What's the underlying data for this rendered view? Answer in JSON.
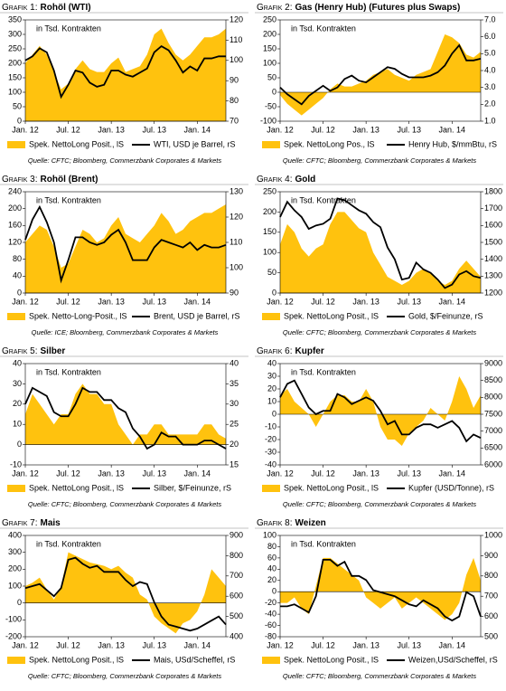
{
  "chart_data": [
    {
      "type": "area-line",
      "label": "Grafik 1:",
      "title": "Rohöl (WTI)",
      "annotation": "in Tsd. Kontrakten",
      "source": "Quelle: CFTC; Bloomberg, Commerzbank Corporates & Markets",
      "categories": [
        "Jan. 12",
        null,
        null,
        null,
        null,
        null,
        "Jul. 12",
        null,
        null,
        null,
        null,
        null,
        "Jan. 13",
        null,
        null,
        null,
        null,
        null,
        "Jul. 13",
        null,
        null,
        null,
        null,
        null,
        "Jan. 14",
        null,
        null,
        null,
        null
      ],
      "ylim": [
        0,
        350
      ],
      "yticks": [
        0,
        50,
        100,
        150,
        200,
        250,
        300,
        350
      ],
      "y2lim": [
        70,
        120
      ],
      "y2ticks": [
        70,
        80,
        90,
        100,
        110,
        120
      ],
      "series": [
        {
          "name": "Spek. NettoLong Posit., lS",
          "color": "#ffc20e",
          "values": [
            200,
            230,
            260,
            230,
            170,
            110,
            130,
            180,
            210,
            180,
            170,
            170,
            200,
            220,
            170,
            180,
            190,
            230,
            300,
            320,
            270,
            230,
            210,
            230,
            260,
            290,
            290,
            300,
            320
          ]
        },
        {
          "name": "WTI, USD je Barrel, rS",
          "color": "#000000",
          "axis": "y2",
          "values": [
            100,
            102,
            106,
            104,
            95,
            82,
            88,
            95,
            94,
            89,
            87,
            88,
            95,
            95,
            93,
            92,
            94,
            96,
            104,
            107,
            105,
            100,
            94,
            97,
            95,
            101,
            101,
            102,
            102
          ]
        }
      ]
    },
    {
      "type": "area-line",
      "label": "Grafik 2:",
      "title": "Gas (Henry Hub) (Futures plus Swaps)",
      "annotation": "in Tsd. Kontrakten",
      "source": "Quelle: CFTC; Bloomberg, Commerzbank Corporates & Markets",
      "categories": [
        "Jan. 12",
        null,
        null,
        null,
        null,
        null,
        "Jul. 12",
        null,
        null,
        null,
        null,
        null,
        "Jan. 13",
        null,
        null,
        null,
        null,
        null,
        "Jul. 13",
        null,
        null,
        null,
        null,
        null,
        "Jan. 14",
        null,
        null,
        null,
        null
      ],
      "ylim": [
        -100,
        250
      ],
      "yticks": [
        -100,
        -50,
        0,
        50,
        100,
        150,
        200,
        250
      ],
      "y2lim": [
        1,
        7
      ],
      "y2ticks": [
        {
          "value": 1,
          "label": "1.0"
        },
        {
          "value": 2,
          "label": "2.0"
        },
        {
          "value": 3,
          "label": "3.0"
        },
        {
          "value": 4,
          "label": "4.0"
        },
        {
          "value": 5,
          "label": "5.0"
        },
        {
          "value": 6,
          "label": "6.0"
        },
        {
          "value": 7,
          "label": "7.0"
        }
      ],
      "series": [
        {
          "name": "Spek. NettoLong Pos., lS",
          "color": "#ffc20e",
          "values": [
            -10,
            -40,
            -60,
            -80,
            -60,
            -40,
            -20,
            10,
            30,
            20,
            20,
            30,
            40,
            60,
            70,
            80,
            60,
            50,
            40,
            60,
            70,
            80,
            140,
            200,
            190,
            170,
            130,
            120,
            140
          ]
        },
        {
          "name": "Henry Hub, $/mmBtu, rS",
          "color": "#000000",
          "axis": "y2",
          "values": [
            3.0,
            2.6,
            2.3,
            2.0,
            2.5,
            2.8,
            3.1,
            2.8,
            3.0,
            3.5,
            3.7,
            3.4,
            3.3,
            3.6,
            3.9,
            4.2,
            4.1,
            3.8,
            3.6,
            3.6,
            3.6,
            3.7,
            3.9,
            4.3,
            5.0,
            5.5,
            4.6,
            4.6,
            4.7
          ]
        }
      ]
    },
    {
      "type": "area-line",
      "label": "Grafik 3:",
      "title": "Rohöl (Brent)",
      "annotation": "in Tsd. Kontrakten",
      "source": "Quelle: ICE; Bloomberg, Commerzbank Corporates & Markets",
      "categories": [
        "Jan. 12",
        null,
        null,
        null,
        null,
        null,
        "Jul. 12",
        null,
        null,
        null,
        null,
        null,
        "Jan. 13",
        null,
        null,
        null,
        null,
        null,
        "Jul. 13",
        null,
        null,
        null,
        null,
        null,
        "Jan. 14",
        null,
        null,
        null,
        null
      ],
      "ylim": [
        0,
        240
      ],
      "yticks": [
        0,
        40,
        80,
        120,
        160,
        200,
        240
      ],
      "y2lim": [
        90,
        130
      ],
      "y2ticks": [
        90,
        100,
        110,
        120,
        130
      ],
      "series": [
        {
          "name": "Spek. Netto-Long-Posit., lS",
          "color": "#ffc20e",
          "values": [
            120,
            140,
            160,
            150,
            110,
            60,
            70,
            110,
            150,
            140,
            120,
            130,
            160,
            180,
            140,
            130,
            120,
            140,
            160,
            190,
            170,
            140,
            150,
            170,
            180,
            190,
            190,
            200,
            210
          ]
        },
        {
          "name": "Brent, USD je Barrel, rS",
          "color": "#000000",
          "axis": "y2",
          "values": [
            111,
            119,
            124,
            118,
            110,
            95,
            103,
            112,
            112,
            110,
            109,
            110,
            113,
            115,
            110,
            103,
            103,
            103,
            108,
            111,
            110,
            109,
            108,
            110,
            107,
            109,
            108,
            108,
            109
          ]
        }
      ]
    },
    {
      "type": "area-line",
      "label": "Grafik 4:",
      "title": "Gold",
      "annotation": "in Tsd. Kontrakten",
      "source": "Quelle: CFTC; Bloomberg, Commerzbank Corporates & Markets",
      "categories": [
        "Jan. 12",
        null,
        null,
        null,
        null,
        null,
        "Jul. 12",
        null,
        null,
        null,
        null,
        null,
        "Jan. 13",
        null,
        null,
        null,
        null,
        null,
        "Jul. 13",
        null,
        null,
        null,
        null,
        null,
        "Jan. 14",
        null,
        null,
        null,
        null
      ],
      "ylim": [
        0,
        250
      ],
      "yticks": [
        0,
        50,
        100,
        150,
        200,
        250
      ],
      "y2lim": [
        1200,
        1800
      ],
      "y2ticks": [
        1200,
        1300,
        1400,
        1500,
        1600,
        1700,
        1800
      ],
      "series": [
        {
          "name": "Spek. NettoLong Posit., lS",
          "color": "#ffc20e",
          "values": [
            120,
            170,
            150,
            110,
            90,
            110,
            120,
            170,
            200,
            200,
            180,
            160,
            150,
            100,
            70,
            40,
            30,
            20,
            30,
            50,
            60,
            50,
            30,
            20,
            30,
            60,
            80,
            60,
            40
          ]
        },
        {
          "name": "Gold, $/Feinunze, rS",
          "color": "#000000",
          "axis": "y2",
          "values": [
            1650,
            1740,
            1690,
            1650,
            1580,
            1600,
            1610,
            1640,
            1760,
            1750,
            1720,
            1690,
            1670,
            1620,
            1590,
            1470,
            1400,
            1280,
            1290,
            1380,
            1340,
            1320,
            1280,
            1230,
            1250,
            1310,
            1330,
            1300,
            1290
          ]
        }
      ]
    },
    {
      "type": "area-line",
      "label": "Grafik 5:",
      "title": "Silber",
      "annotation": "in Tsd. Kontrakten",
      "source": "Quelle: CFTC; Bloomberg, Commerzbank Corporates & Markets",
      "categories": [
        "Jan. 12",
        null,
        null,
        null,
        null,
        null,
        "Jul. 12",
        null,
        null,
        null,
        null,
        null,
        "Jan. 13",
        null,
        null,
        null,
        null,
        null,
        "Jul. 13",
        null,
        null,
        null,
        null,
        null,
        "Jan. 14",
        null,
        null,
        null,
        null
      ],
      "ylim": [
        -10,
        40
      ],
      "yticks": [
        -10,
        0,
        10,
        20,
        30,
        40
      ],
      "y2lim": [
        15,
        40
      ],
      "y2ticks": [
        15,
        20,
        25,
        30,
        35,
        40
      ],
      "series": [
        {
          "name": "Spek. NettoLong Posit., lS",
          "color": "#ffc20e",
          "values": [
            15,
            25,
            20,
            15,
            10,
            15,
            15,
            25,
            30,
            25,
            25,
            20,
            20,
            10,
            5,
            0,
            5,
            5,
            10,
            10,
            5,
            5,
            5,
            5,
            5,
            10,
            10,
            5,
            3
          ]
        },
        {
          "name": "Silber, $/Feinunze, rS",
          "color": "#000000",
          "axis": "y2",
          "values": [
            30,
            34,
            33,
            32,
            28,
            27,
            27,
            30,
            34,
            33,
            33,
            31,
            31,
            29,
            28,
            24,
            22,
            19,
            20,
            23,
            22,
            22,
            20,
            20,
            20,
            21,
            21,
            20,
            19
          ]
        }
      ]
    },
    {
      "type": "area-line",
      "label": "Grafik 6:",
      "title": "Kupfer",
      "annotation": "in Tsd. Kontrakten",
      "source": "Quelle: CFTC; Bloomberg, Commerzbank Corporates & Markets",
      "categories": [
        "Jan. 12",
        null,
        null,
        null,
        null,
        null,
        "Jul. 12",
        null,
        null,
        null,
        null,
        null,
        "Jan. 13",
        null,
        null,
        null,
        null,
        null,
        "Jul. 13",
        null,
        null,
        null,
        null,
        null,
        "Jan. 14",
        null,
        null,
        null,
        null
      ],
      "ylim": [
        -40,
        40
      ],
      "yticks": [
        -40,
        -30,
        -20,
        -10,
        0,
        10,
        20,
        30,
        40
      ],
      "y2lim": [
        6000,
        9000
      ],
      "y2ticks": [
        6000,
        6500,
        7000,
        7500,
        8000,
        8500,
        9000
      ],
      "series": [
        {
          "name": "Spek. NettoLong Posit., lS",
          "color": "#ffc20e",
          "values": [
            15,
            20,
            10,
            5,
            0,
            -10,
            0,
            10,
            15,
            15,
            10,
            10,
            20,
            10,
            -10,
            -20,
            -20,
            -25,
            -15,
            -10,
            -5,
            5,
            0,
            -5,
            10,
            30,
            20,
            5,
            15
          ]
        },
        {
          "name": "Kupfer (USD/Tonne), rS",
          "color": "#000000",
          "axis": "y2",
          "values": [
            8000,
            8400,
            8500,
            8100,
            7700,
            7500,
            7600,
            7600,
            8100,
            8000,
            7800,
            7900,
            8000,
            7900,
            7600,
            7200,
            7300,
            6900,
            6900,
            7100,
            7200,
            7200,
            7100,
            7200,
            7300,
            7100,
            6700,
            6900,
            6800
          ]
        }
      ]
    },
    {
      "type": "area-line",
      "label": "Grafik 7:",
      "title": "Mais",
      "annotation": "in Tsd. Kontrakten",
      "source": "Quelle: CFTC; Bloomberg, Commerzbank Corporates & Markets",
      "categories": [
        "Jan. 12",
        null,
        null,
        null,
        null,
        null,
        "Jul. 12",
        null,
        null,
        null,
        null,
        null,
        "Jan. 13",
        null,
        null,
        null,
        null,
        null,
        "Jul. 13",
        null,
        null,
        null,
        null,
        null,
        "Jan. 14",
        null,
        null,
        null,
        null
      ],
      "ylim": [
        -200,
        400
      ],
      "yticks": [
        -200,
        -100,
        0,
        100,
        200,
        300,
        400
      ],
      "y2lim": [
        400,
        900
      ],
      "y2ticks": [
        400,
        500,
        600,
        700,
        800,
        900
      ],
      "series": [
        {
          "name": "Spek. NettoLong Posit., lS",
          "color": "#ffc20e",
          "values": [
            100,
            120,
            150,
            80,
            20,
            100,
            300,
            280,
            260,
            240,
            230,
            220,
            200,
            220,
            180,
            150,
            50,
            20,
            -80,
            -120,
            -150,
            -180,
            -120,
            -100,
            -50,
            50,
            200,
            150,
            100
          ]
        },
        {
          "name": "Mais, USd/Scheffel, rS",
          "color": "#000000",
          "axis": "y2",
          "values": [
            640,
            650,
            660,
            630,
            600,
            640,
            780,
            790,
            760,
            740,
            750,
            720,
            720,
            720,
            680,
            650,
            670,
            660,
            570,
            500,
            460,
            450,
            440,
            430,
            440,
            460,
            480,
            500,
            460
          ]
        }
      ]
    },
    {
      "type": "area-line",
      "label": "Grafik 8:",
      "title": "Weizen",
      "annotation": "in Tsd. Kontrakten",
      "source": "Quelle: CFTC; Bloomberg, Commerzbank Corporates & Markets",
      "categories": [
        "Jan. 12",
        null,
        null,
        null,
        null,
        null,
        "Jul. 12",
        null,
        null,
        null,
        null,
        null,
        "Jan. 13",
        null,
        null,
        null,
        null,
        null,
        "Jul. 13",
        null,
        null,
        null,
        null,
        null,
        "Jan. 14",
        null,
        null,
        null,
        null
      ],
      "ylim": [
        -80,
        100
      ],
      "yticks": [
        -80,
        -60,
        -40,
        -20,
        0,
        20,
        40,
        60,
        80,
        100
      ],
      "y2lim": [
        500,
        1000
      ],
      "y2ticks": [
        500,
        600,
        700,
        800,
        900,
        1000
      ],
      "series": [
        {
          "name": "Spek. NettoLong Posit., lS",
          "color": "#ffc20e",
          "values": [
            -20,
            -20,
            -10,
            -30,
            -40,
            10,
            60,
            60,
            50,
            40,
            30,
            20,
            -10,
            -20,
            -30,
            -20,
            -10,
            -30,
            -20,
            -10,
            -20,
            -30,
            -40,
            -50,
            -40,
            -20,
            30,
            60,
            20
          ]
        },
        {
          "name": "Weizen,USd/Scheffel, rS",
          "color": "#000000",
          "axis": "y2",
          "values": [
            650,
            650,
            660,
            640,
            620,
            700,
            880,
            880,
            850,
            870,
            800,
            800,
            780,
            730,
            720,
            710,
            700,
            680,
            660,
            650,
            680,
            660,
            640,
            600,
            580,
            600,
            720,
            700,
            600
          ]
        }
      ]
    }
  ]
}
